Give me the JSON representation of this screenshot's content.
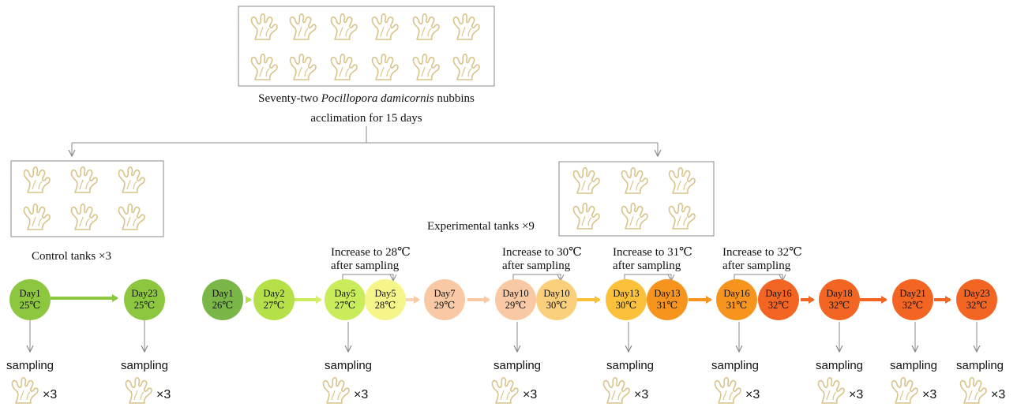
{
  "top": {
    "caption_pre": "Seventy-two ",
    "caption_species": "Pocillopora damicornis",
    "caption_post": " nubbins",
    "acclimation": "acclimation for 15 days"
  },
  "control": {
    "label": "Control tanks ×3"
  },
  "experimental": {
    "label": "Experimental tanks ×9"
  },
  "increase_notes": [
    {
      "line1": "Increase to 28℃",
      "line2": "after sampling"
    },
    {
      "line1": "Increase to 30℃",
      "line2": "after sampling"
    },
    {
      "line1": "Increase to 31℃",
      "line2": "after sampling"
    },
    {
      "line1": "Increase to 32℃",
      "line2": "after sampling"
    }
  ],
  "days": [
    {
      "day": "Day1",
      "temp": "25℃",
      "color": "#8dc63f"
    },
    {
      "day": "Day23",
      "temp": "25℃",
      "color": "#8dc63f"
    },
    {
      "day": "Day1",
      "temp": "26℃",
      "color": "#7ab648"
    },
    {
      "day": "Day2",
      "temp": "27℃",
      "color": "#b5e048"
    },
    {
      "day": "Day5",
      "temp": "27℃",
      "color": "#c8ec5a"
    },
    {
      "day": "Day5",
      "temp": "28℃",
      "color": "#f5f58a"
    },
    {
      "day": "Day7",
      "temp": "29℃",
      "color": "#f8c9a4"
    },
    {
      "day": "Day10",
      "temp": "29℃",
      "color": "#f8c9a4"
    },
    {
      "day": "Day10",
      "temp": "30℃",
      "color": "#fbd07c"
    },
    {
      "day": "Day13",
      "temp": "30℃",
      "color": "#fbc13a"
    },
    {
      "day": "Day13",
      "temp": "31℃",
      "color": "#f7941d"
    },
    {
      "day": "Day16",
      "temp": "31℃",
      "color": "#f7941d"
    },
    {
      "day": "Day16",
      "temp": "32℃",
      "color": "#f26522"
    },
    {
      "day": "Day18",
      "temp": "32℃",
      "color": "#f26522"
    },
    {
      "day": "Day21",
      "temp": "32℃",
      "color": "#f26522"
    },
    {
      "day": "Day23",
      "temp": "32℃",
      "color": "#f26522"
    }
  ],
  "sampling": {
    "label": "sampling",
    "count": "×3"
  },
  "coral_color": "#d9c48a"
}
